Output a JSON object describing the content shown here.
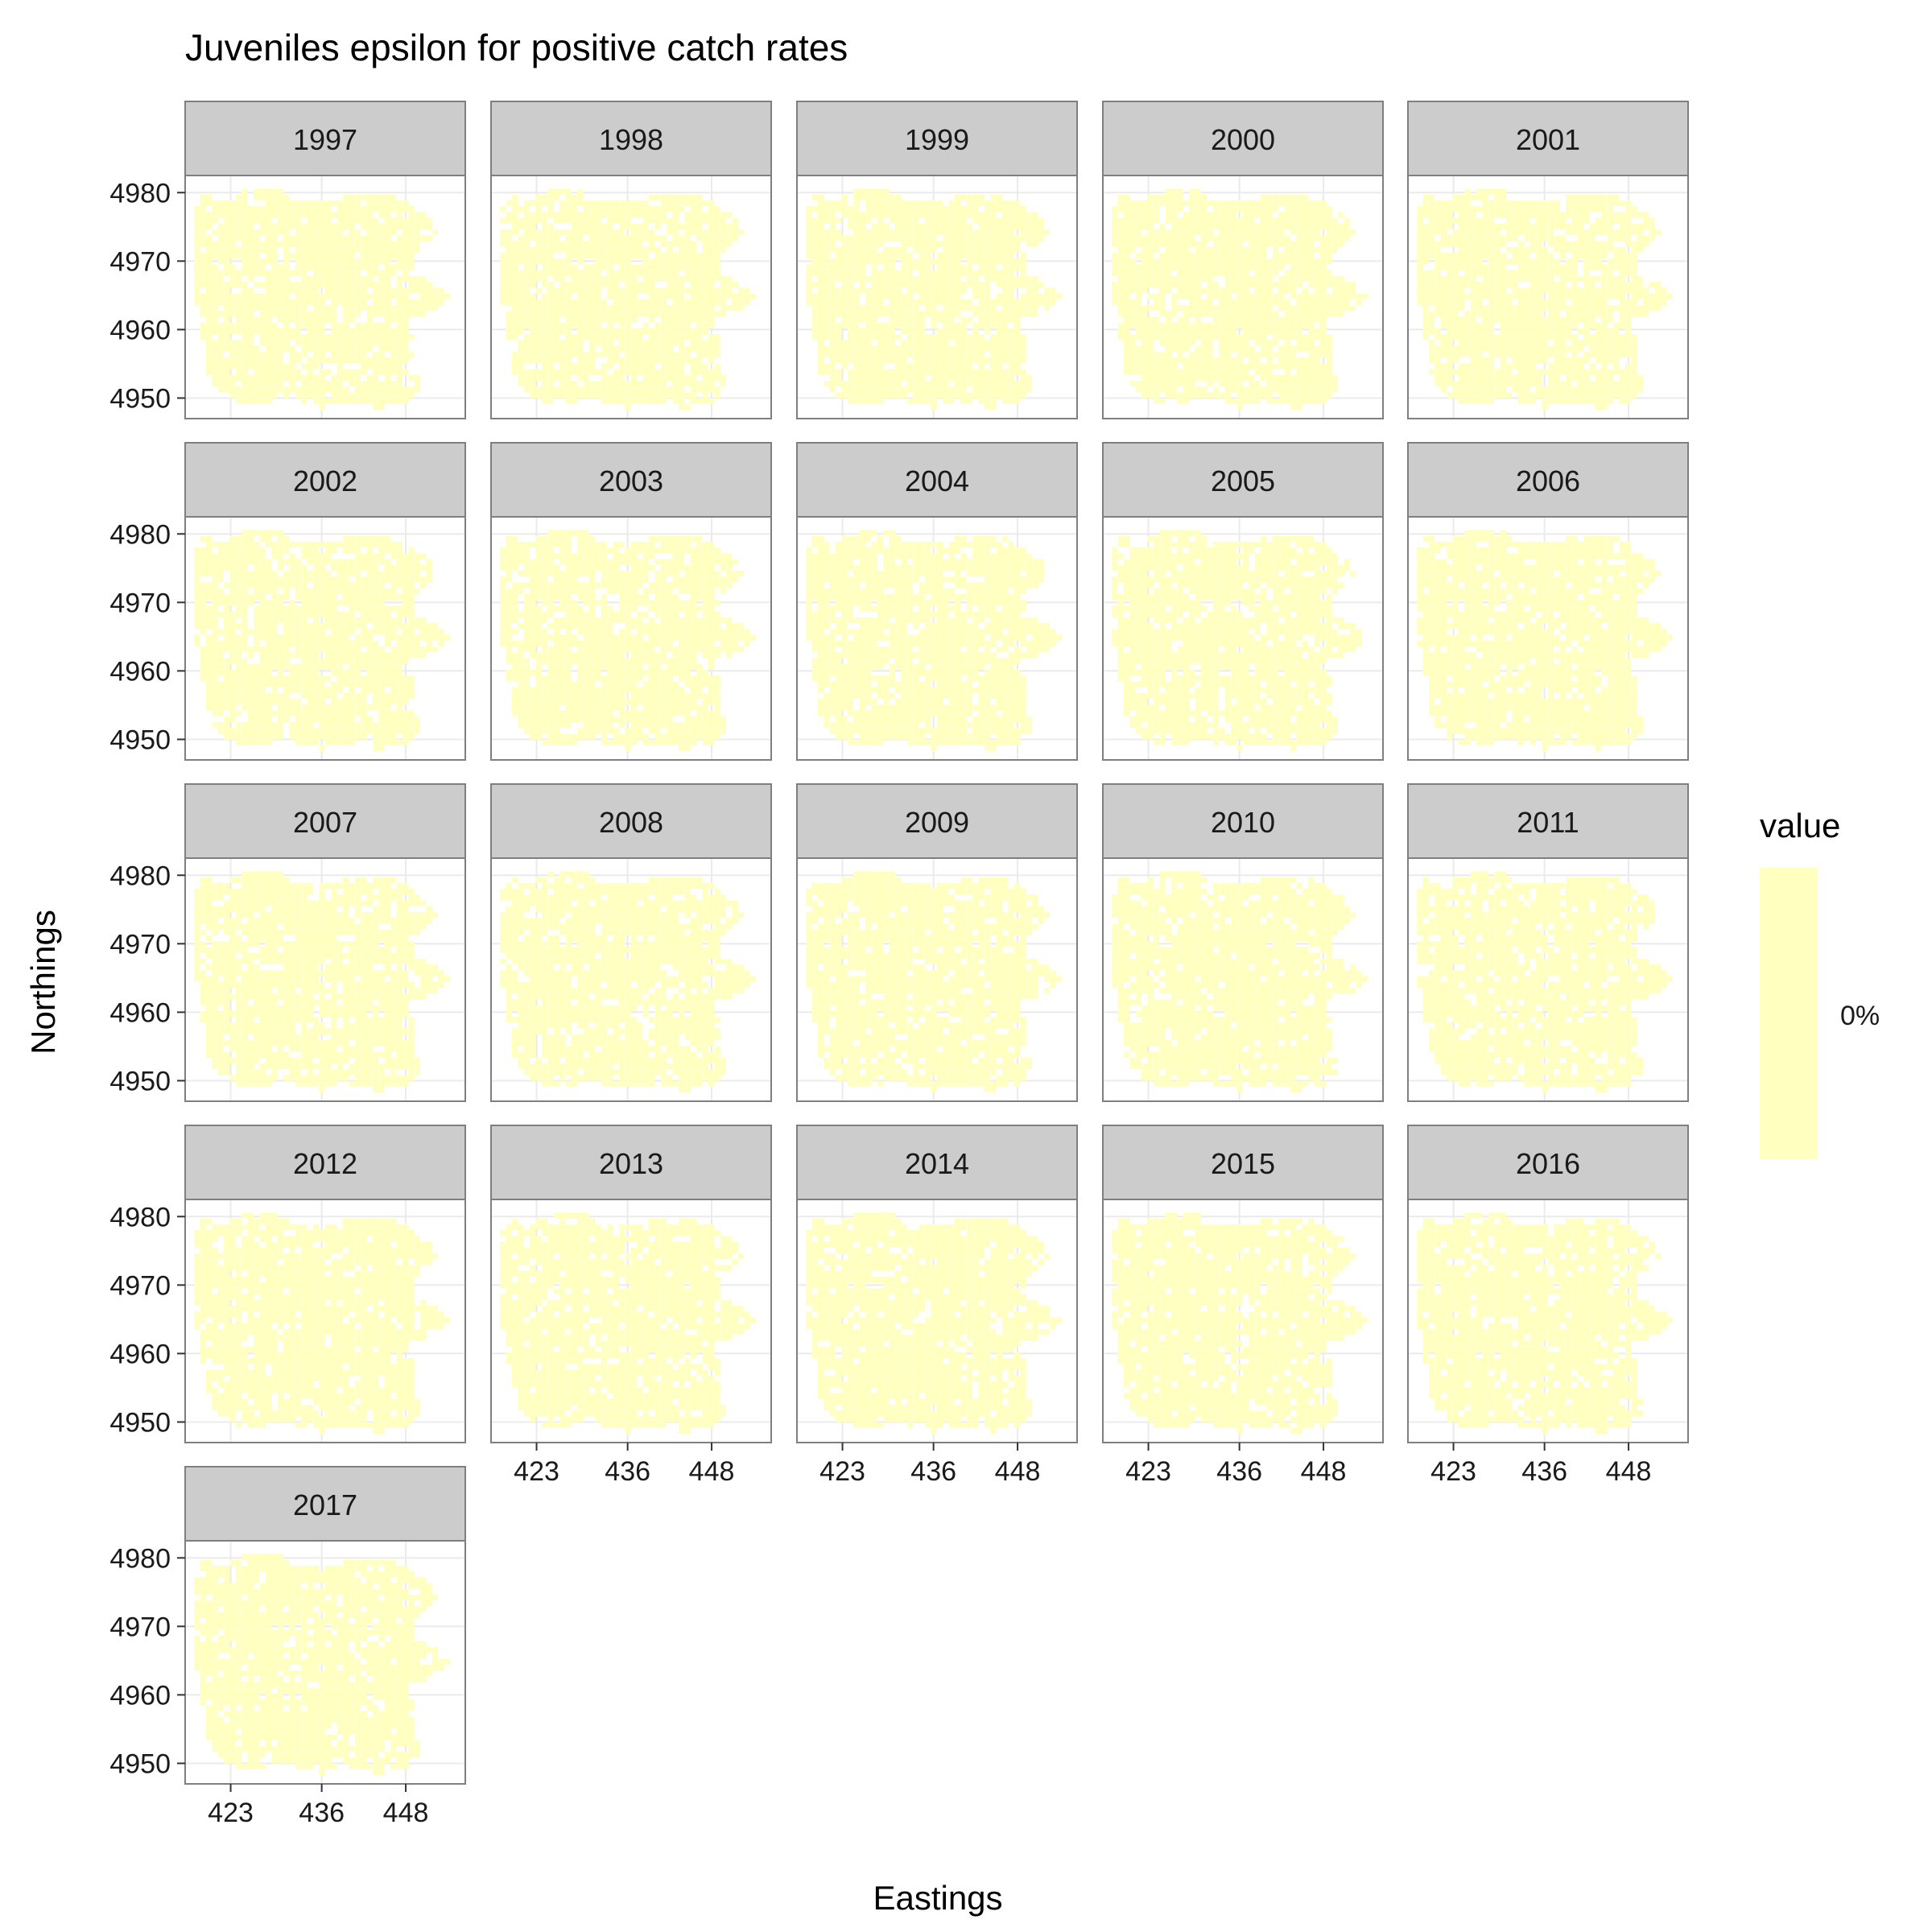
{
  "chart_data": {
    "type": "heatmap",
    "title": "Juveniles epsilon for positive catch rates",
    "xlabel": "Eastings",
    "ylabel": "Northings",
    "facet_variable": "year",
    "panels": [
      "1997",
      "1998",
      "1999",
      "2000",
      "2001",
      "2002",
      "2003",
      "2004",
      "2005",
      "2006",
      "2007",
      "2008",
      "2009",
      "2010",
      "2011",
      "2012",
      "2013",
      "2014",
      "2015",
      "2016",
      "2017"
    ],
    "ncol": 5,
    "x_ticks": [
      423,
      436,
      448
    ],
    "y_ticks": [
      4950,
      4960,
      4970,
      4980
    ],
    "xlim": [
      416.5,
      456.5
    ],
    "ylim": [
      4947,
      4982.5
    ],
    "fill_value_all_cells": "0%",
    "grid": true,
    "legend": {
      "title": "value",
      "placement": "right",
      "labels": [
        "0%"
      ],
      "color": "#FFFFC0"
    }
  },
  "colors": {
    "strip_background": "#CCCCCC",
    "panel_border": "#7f7f7f",
    "grid": "#ebebeb",
    "cell_fill": "#FFFFC0"
  }
}
